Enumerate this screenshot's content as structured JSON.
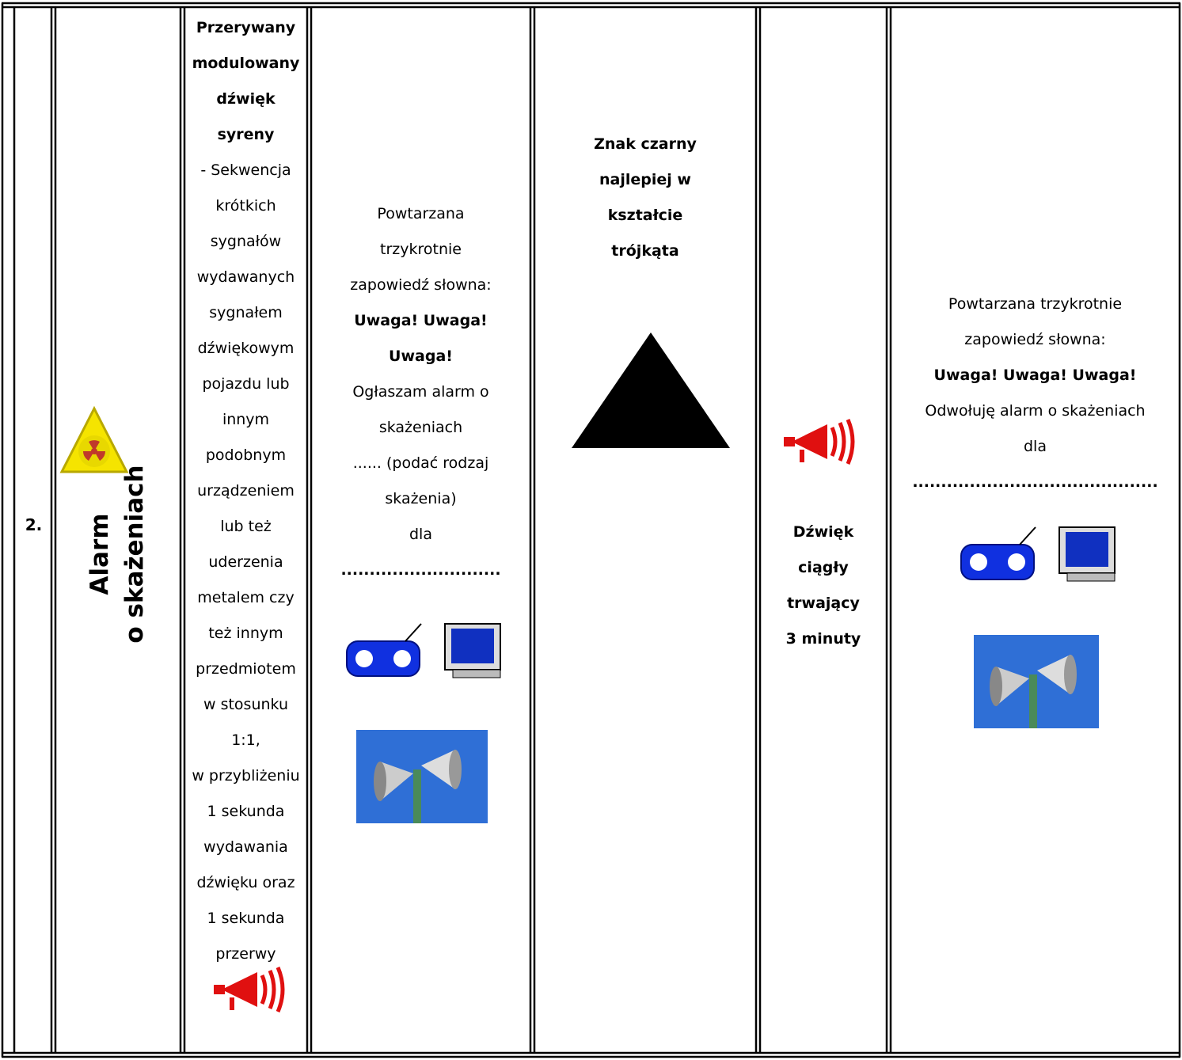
{
  "table": {
    "number": "2.",
    "alarm_name": [
      "Alarm",
      "o skażeniach"
    ],
    "signal": {
      "bold": [
        "Przerywany",
        "modulowany",
        "dźwięk",
        "syreny"
      ],
      "text": [
        "- Sekwencja",
        "krótkich",
        "sygnałów",
        "wydawanych",
        "sygnałem",
        "dźwiękowym",
        "pojazdu lub",
        "innym",
        "podobnym",
        "urządzeniem",
        "lub też",
        "uderzenia",
        "metalem czy",
        "też innym",
        "przedmiotem",
        "w stosunku",
        "1:1,",
        "w przybliżeniu",
        "1 sekunda",
        "wydawania",
        "dźwięku oraz",
        "1 sekunda",
        "przerwy"
      ]
    },
    "announcement": {
      "intro": [
        "Powtarzana",
        "trzykrotnie",
        "zapowiedź słowna:"
      ],
      "bold": [
        "Uwaga! Uwaga!",
        "Uwaga!"
      ],
      "text": [
        "Ogłaszam alarm o",
        "skażeniach",
        "...... (podać rodzaj",
        "skażenia)",
        "dla"
      ],
      "dots": "............................"
    },
    "sign": [
      "Znak czarny",
      "najlepiej w",
      "kształcie",
      "trójkąta"
    ],
    "cancel_signal": [
      "Dźwięk",
      "ciągły",
      "trwający",
      "3 minuty"
    ],
    "cancel_announcement": {
      "intro": [
        "Powtarzana trzykrotnie",
        "zapowiedź słowna:"
      ],
      "bold": [
        "Uwaga! Uwaga! Uwaga!"
      ],
      "text": [
        "Odwołuję alarm o skażeniach",
        "dla"
      ],
      "dots": "..........................................."
    }
  }
}
